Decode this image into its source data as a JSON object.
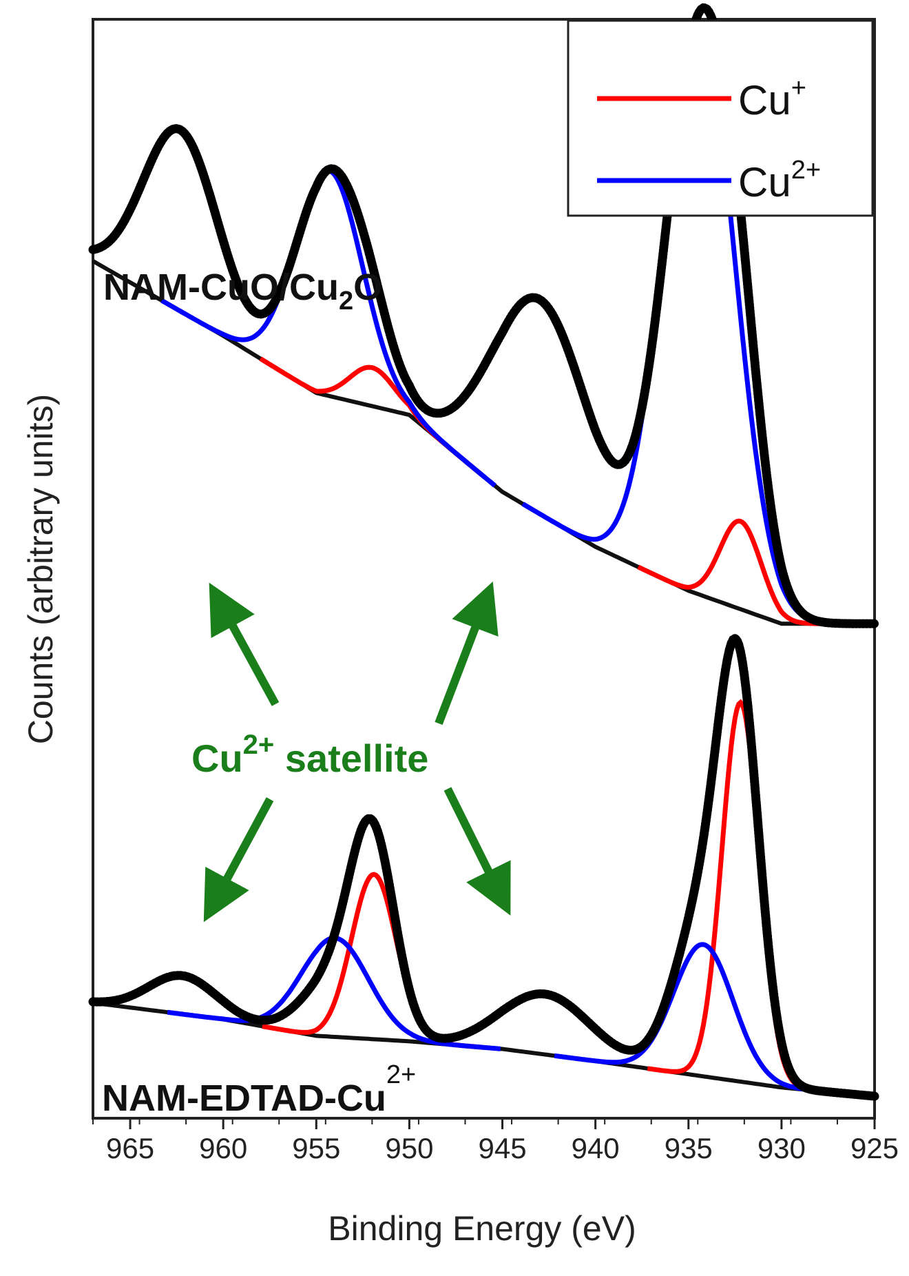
{
  "chart_data": {
    "type": "line",
    "xlabel": "Binding Energy (eV)",
    "ylabel": "Counts (arbitrary units)",
    "xlim": [
      967,
      925
    ],
    "x_reversed": true,
    "x_ticks": [
      965,
      960,
      955,
      950,
      945,
      940,
      935,
      930,
      925
    ],
    "y_ticks_shown": false,
    "grid": false,
    "legend": {
      "placement": "top-right",
      "entries": [
        {
          "base": "Cu",
          "sup": "+",
          "color": "#ff0000"
        },
        {
          "base": "Cu",
          "sup": "2+",
          "color": "#0000ff"
        }
      ]
    },
    "annotation": {
      "base": "Cu",
      "sup": "2+",
      "rest": " satellite",
      "color": "#1a7f1a"
    },
    "samples": [
      {
        "label_parts": [
          "NAM-CuO/Cu",
          "2",
          "O"
        ],
        "position": "top",
        "baseline": [
          [
            967,
            0.78
          ],
          [
            960,
            0.712
          ],
          [
            955,
            0.66
          ],
          [
            950,
            0.64
          ],
          [
            945,
            0.57
          ],
          [
            940,
            0.52
          ],
          [
            935,
            0.48
          ],
          [
            930,
            0.45
          ],
          [
            925,
            0.45
          ]
        ],
        "measured_peaks": [
          {
            "center": 962.3,
            "height": 0.165,
            "width": 2.0
          },
          {
            "center": 954.3,
            "height": 0.2,
            "width": 1.8
          },
          {
            "center": 952.0,
            "height": 0.04,
            "width": 1.2
          },
          {
            "center": 943.0,
            "height": 0.195,
            "width": 2.6
          },
          {
            "center": 934.3,
            "height": 0.52,
            "width": 1.9
          },
          {
            "center": 932.2,
            "height": 0.08,
            "width": 1.1
          }
        ],
        "cu1_fit": [
          {
            "center": 952.0,
            "height": 0.035,
            "width": 1.2
          },
          {
            "center": 932.2,
            "height": 0.08,
            "width": 1.1
          }
        ],
        "cu2_fit": [
          {
            "center": 954.3,
            "height": 0.205,
            "width": 1.8
          },
          {
            "center": 934.4,
            "height": 0.52,
            "width": 1.9
          }
        ]
      },
      {
        "label_parts": [
          "NAM-EDTAD-Cu",
          "2+"
        ],
        "position": "bottom",
        "baseline": [
          [
            967,
            0.105
          ],
          [
            960,
            0.09
          ],
          [
            955,
            0.075
          ],
          [
            950,
            0.07
          ],
          [
            945,
            0.063
          ],
          [
            940,
            0.052
          ],
          [
            935,
            0.04
          ],
          [
            930,
            0.028
          ],
          [
            925,
            0.02
          ]
        ],
        "measured_peaks": [
          {
            "center": 962.2,
            "height": 0.035,
            "width": 1.8
          },
          {
            "center": 954.2,
            "height": 0.05,
            "width": 1.6
          },
          {
            "center": 952.0,
            "height": 0.18,
            "width": 1.2
          },
          {
            "center": 942.7,
            "height": 0.055,
            "width": 2.4
          },
          {
            "center": 934.3,
            "height": 0.14,
            "width": 1.5
          },
          {
            "center": 932.3,
            "height": 0.34,
            "width": 1.1
          }
        ],
        "cu1_fit": [
          {
            "center": 951.9,
            "height": 0.15,
            "width": 1.2
          },
          {
            "center": 932.2,
            "height": 0.345,
            "width": 1.0
          }
        ],
        "cu2_fit": [
          {
            "center": 954.0,
            "height": 0.09,
            "width": 1.8
          },
          {
            "center": 934.2,
            "height": 0.12,
            "width": 1.6
          }
        ]
      }
    ]
  }
}
